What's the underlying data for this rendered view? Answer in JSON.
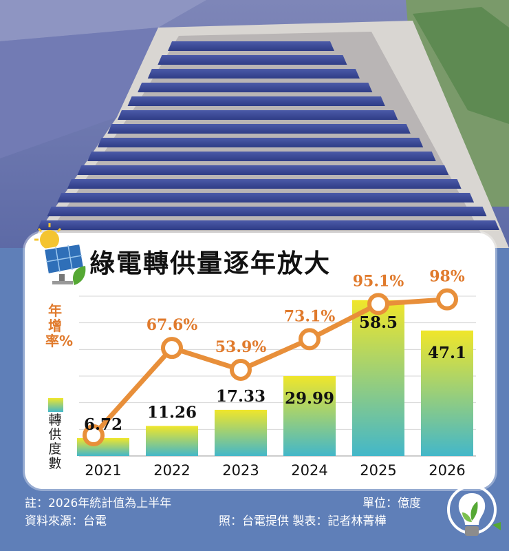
{
  "title": "綠電轉供量逐年放大",
  "rate_axis_label": "年增率%",
  "supply_axis_label": "轉供度數",
  "footer": {
    "note": "註：2026年統計值為上半年",
    "source": "資料來源：台電",
    "unit": "單位：億度",
    "credit": "照：台電提供  製表：記者林菁樺"
  },
  "icons": [
    "solar-panel-sun-icon",
    "green-energy-bulb-icon"
  ],
  "colors": {
    "line": "#e88f3a",
    "label_orange": "#e07a2c",
    "bar_top": "#f0e62a",
    "bar_bottom": "#43b7c9",
    "footer_bg": "#5f7fb8"
  },
  "chart_data": {
    "type": "bar",
    "categories": [
      "2021",
      "2022",
      "2023",
      "2024",
      "2025",
      "2026"
    ],
    "series": [
      {
        "values": [
          6.72,
          11.26,
          17.33,
          29.99,
          58.5,
          47.1
        ],
        "value_labels": [
          "6.72",
          "11.26",
          "17.33",
          "29.99",
          "58.5",
          "47.1"
        ]
      },
      {
        "type": "line",
        "values": [
          null,
          67.6,
          53.9,
          73.1,
          95.1,
          98
        ],
        "value_labels": [
          "",
          "67.6%",
          "53.9%",
          "73.1%",
          "95.1%",
          "98%"
        ]
      }
    ],
    "ylim": [
      0,
      60
    ],
    "y2lim": [
      0,
      100
    ],
    "grid": true
  }
}
